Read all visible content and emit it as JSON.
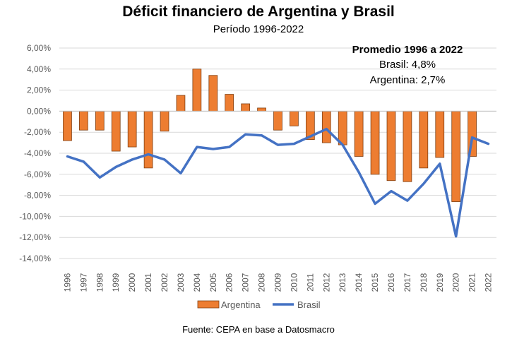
{
  "chart_data": {
    "type": "bar",
    "title": "Déficit financiero de Argentina y Brasil",
    "subtitle": "Período 1996-2022",
    "categories": [
      "1996",
      "1997",
      "1998",
      "1999",
      "2000",
      "2001",
      "2002",
      "2003",
      "2004",
      "2005",
      "2006",
      "2007",
      "2008",
      "2009",
      "2010",
      "2011",
      "2012",
      "2013",
      "2014",
      "2015",
      "2016",
      "2017",
      "2018",
      "2019",
      "2020",
      "2021",
      "2022"
    ],
    "series": [
      {
        "name": "Argentina",
        "type": "bar",
        "color": "#ED7D31",
        "values": [
          -2.8,
          -1.8,
          -1.8,
          -3.8,
          -3.4,
          -5.4,
          -1.9,
          1.5,
          4.0,
          3.4,
          1.6,
          0.7,
          0.3,
          -1.8,
          -1.4,
          -2.7,
          -3.0,
          -3.2,
          -4.3,
          -6.0,
          -6.6,
          -6.7,
          -5.4,
          -4.4,
          -8.6,
          -4.3,
          null
        ]
      },
      {
        "name": "Brasil",
        "type": "line",
        "color": "#4472C4",
        "values": [
          -4.3,
          -4.8,
          -6.3,
          -5.3,
          -4.6,
          -4.1,
          -4.6,
          -5.9,
          -3.4,
          -3.6,
          -3.4,
          -2.2,
          -2.3,
          -3.2,
          -3.1,
          -2.4,
          -1.7,
          -3.2,
          -5.8,
          -8.8,
          -7.6,
          -8.5,
          -6.9,
          -5.0,
          -11.9,
          -2.5,
          -3.1
        ]
      }
    ],
    "yticks": [
      "6,00%",
      "4,00%",
      "2,00%",
      "0,00%",
      "-2,00%",
      "-4,00%",
      "-6,00%",
      "-8,00%",
      "-10,00%",
      "-12,00%",
      "-14,00%"
    ],
    "ylim": [
      -14,
      6
    ],
    "grid": true,
    "legend_position": "bottom",
    "annotation": {
      "heading": "Promedio 1996 a 2022",
      "line1": "Brasil: 4,8%",
      "line2": "Argentina: 2,7%"
    },
    "source": "Fuente: CEPA en base a Datosmacro"
  }
}
